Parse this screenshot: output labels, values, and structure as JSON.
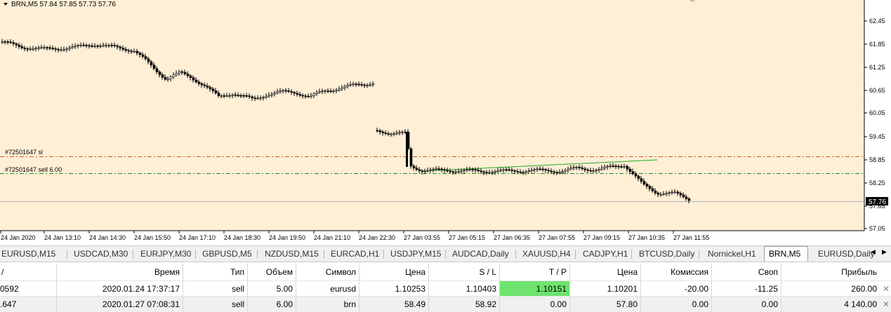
{
  "chart": {
    "header": "BRN,M5  57.84 57.85 57.73 57.76",
    "price_axis": [
      "62.45",
      "61.85",
      "61.25",
      "60.65",
      "60.05",
      "59.45",
      "58.85",
      "58.25",
      "57.65",
      "57.05"
    ],
    "time_axis": [
      "24 Jan 2020",
      "24 Jan 13:10",
      "24 Jan 14:30",
      "24 Jan 15:50",
      "24 Jan 17:10",
      "24 Jan 18:30",
      "24 Jan 19:50",
      "24 Jan 21:10",
      "24 Jan 22:30",
      "27 Jan 03:55",
      "27 Jan 05:15",
      "27 Jan 06:35",
      "27 Jan 07:55",
      "27 Jan 09:15",
      "27 Jan 10:35",
      "27 Jan 11:55"
    ],
    "sl_label": "#72501647 sl",
    "order_label": "#72501647 sell 6.00",
    "current_price": "57.76",
    "colors": {
      "background": "#ffefd6",
      "sl_line": "#d9541e",
      "order_line": "#1a8a1a",
      "trend_line": "#22aa22",
      "candle": "#000000"
    }
  },
  "tabs": [
    "EURUSD,M15",
    "USDCAD,M30",
    "EURJPY,M30",
    "GBPUSD,M5",
    "NZDUSD,M15",
    "EURCAD,H1",
    "USDJPY,M15",
    "AUDCAD,Daily",
    "XAUUSD,H4",
    "CADJPY,H1",
    "BTCUSD,Daily",
    "Nornickel,H1",
    "BRN,M5",
    "EURUSD,Daily"
  ],
  "active_tab": "BRN,M5",
  "table": {
    "headers": [
      "/",
      "Время",
      "Тип",
      "Объем",
      "Символ",
      "Цена",
      "S / L",
      "T / P",
      "Цена",
      "Комиссия",
      "Своп",
      "Прибыль"
    ],
    "rows": [
      [
        "0592",
        "2020.01.24 17:37:17",
        "sell",
        "5.00",
        "eurusd",
        "1.10253",
        "1.10403",
        "1.10151",
        "1.10201",
        "-20.00",
        "-11.25",
        "260.00"
      ],
      [
        ".647",
        "2020.01.27 07:08:31",
        "sell",
        "6.00",
        "brn",
        "58.49",
        "58.92",
        "0.00",
        "57.80",
        "0.00",
        "0.00",
        "4 140.00"
      ]
    ]
  }
}
